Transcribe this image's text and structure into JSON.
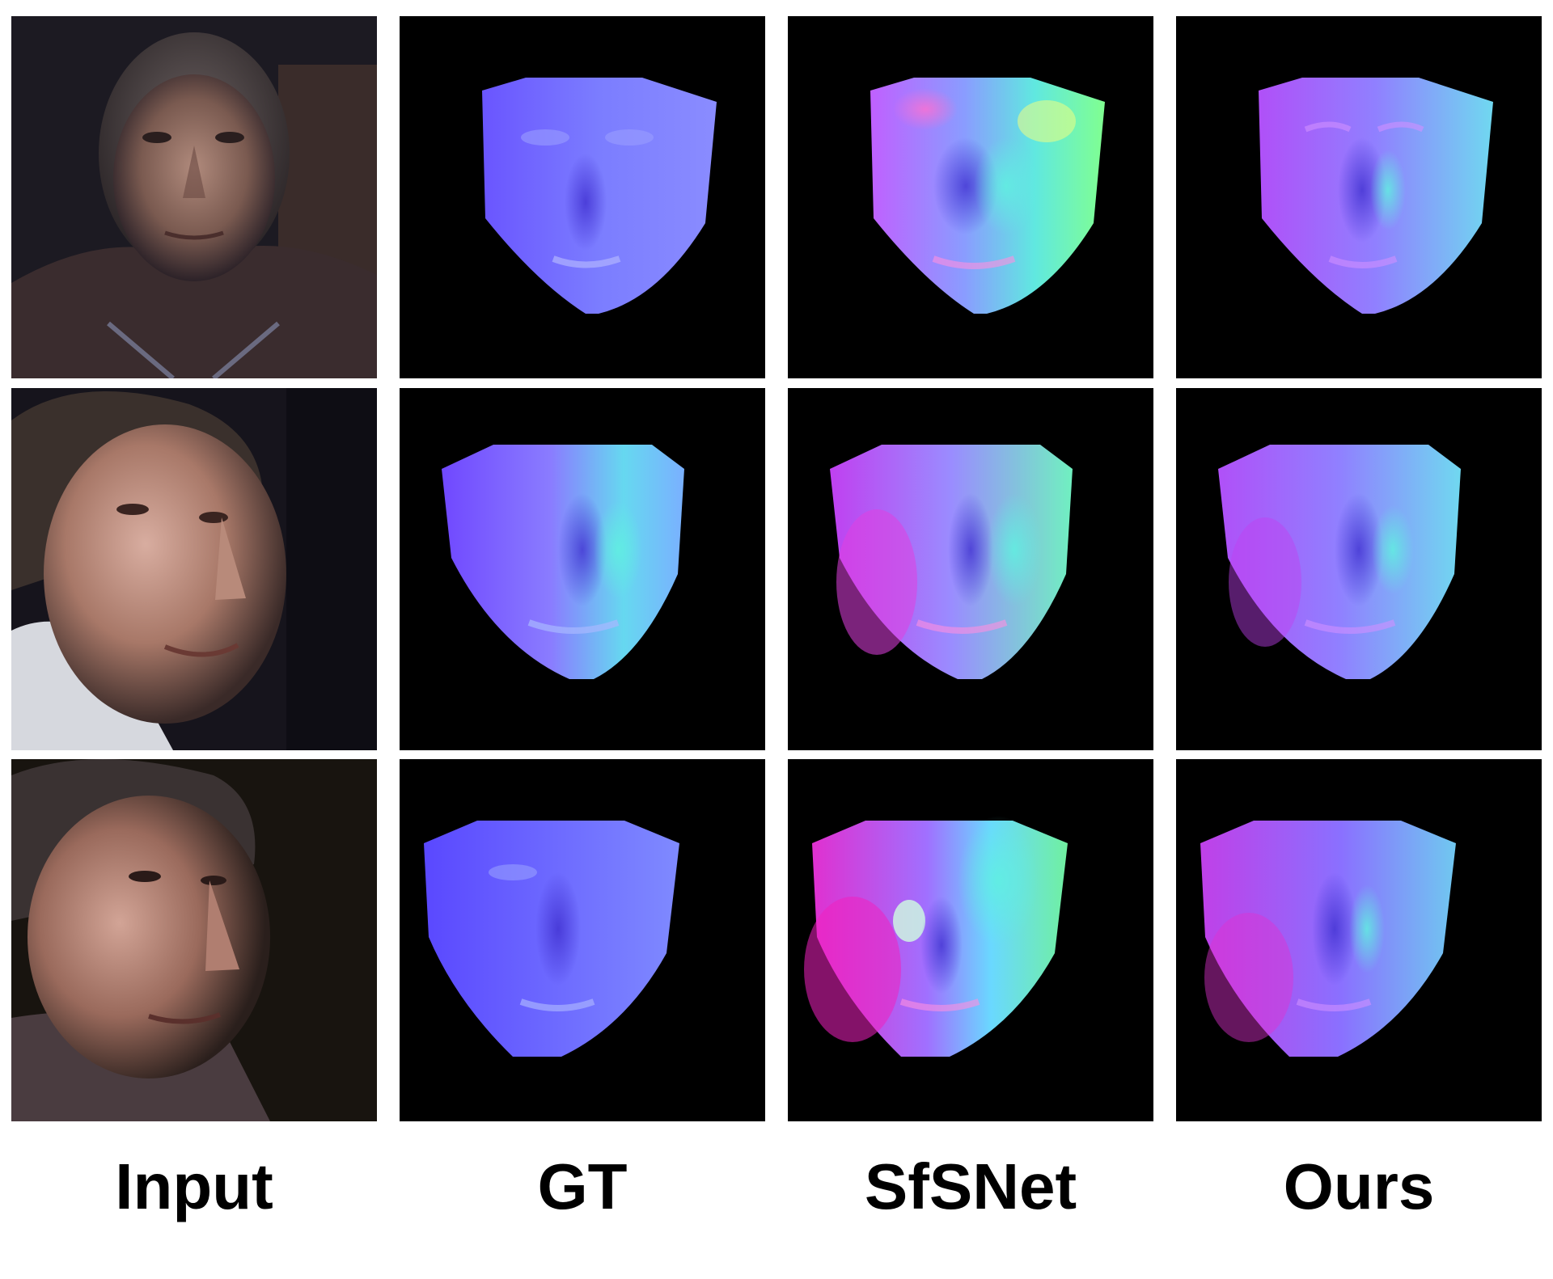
{
  "columns": [
    {
      "id": "input",
      "label": "Input"
    },
    {
      "id": "gt",
      "label": "GT"
    },
    {
      "id": "sfsnet",
      "label": "SfSNet"
    },
    {
      "id": "ours",
      "label": "Ours"
    }
  ],
  "rows": 3,
  "colors": {
    "background": "#ffffff",
    "panel_background": "#000000",
    "normal_blue": "#7a6bff",
    "normal_cyan": "#5ff0f0",
    "normal_magenta": "#e84ff0",
    "normal_green": "#7dffa0"
  }
}
